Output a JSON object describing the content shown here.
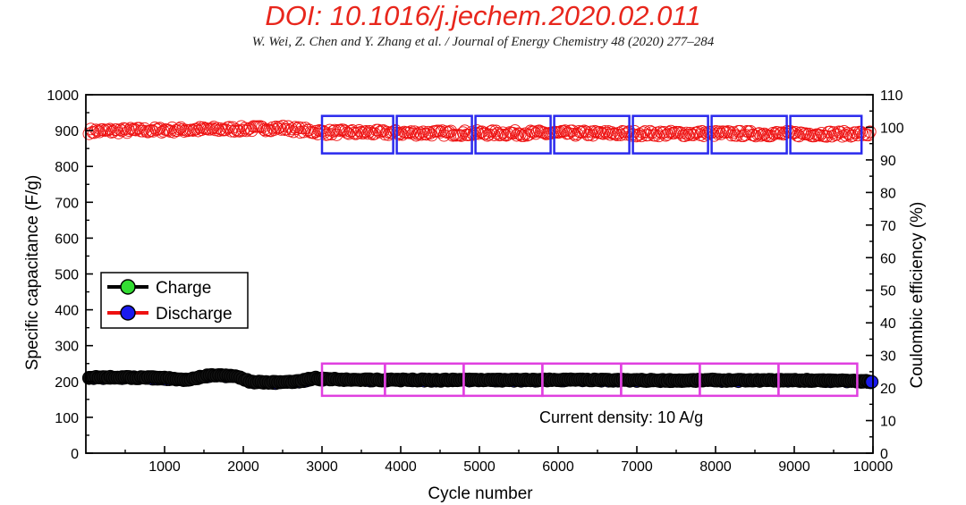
{
  "header": {
    "doi": "DOI: 10.1016/j.jechem.2020.02.011",
    "citation": "W. Wei, Z. Chen and Y. Zhang et al. / Journal of Energy Chemistry 48 (2020) 277–284"
  },
  "chart_data": {
    "type": "scatter",
    "title": "",
    "xlabel": "Cycle number",
    "ylabel": "Specific capacitance (F/g)",
    "y2label": "Coulombic efficiency (%)",
    "xlim": [
      0,
      10000
    ],
    "ylim": [
      0,
      1000
    ],
    "y2lim": [
      0,
      110
    ],
    "x_ticks": [
      1000,
      2000,
      3000,
      4000,
      5000,
      6000,
      7000,
      8000,
      9000,
      10000
    ],
    "y_ticks": [
      0,
      100,
      200,
      300,
      400,
      500,
      600,
      700,
      800,
      900,
      1000
    ],
    "y2_ticks": [
      0,
      10,
      20,
      30,
      40,
      50,
      60,
      70,
      80,
      90,
      100,
      110
    ],
    "grid": false,
    "legend": {
      "position": "center-left",
      "entries": [
        "Charge",
        "Discharge"
      ]
    },
    "colors": {
      "charge_line": "#000000",
      "charge_marker": "#33dd33",
      "discharge_line": "#ee1111",
      "discharge_marker": "#1a1aee",
      "efficiency": "#ee1111",
      "efficiency_box": "#2a2aee",
      "capacitance_box": "#e040e0"
    },
    "series": [
      {
        "name": "Charge",
        "axis": "left",
        "x": [
          0,
          500,
          1000,
          1300,
          1500,
          1700,
          1900,
          2100,
          2300,
          2500,
          2700,
          2900,
          3000,
          3500,
          4000,
          4500,
          5000,
          5500,
          6000,
          6500,
          7000,
          7500,
          8000,
          8500,
          9000,
          9500,
          10000
        ],
        "values": [
          212,
          212,
          210,
          205,
          215,
          218,
          215,
          200,
          198,
          198,
          200,
          210,
          207,
          205,
          205,
          204,
          205,
          204,
          205,
          204,
          204,
          203,
          204,
          203,
          204,
          203,
          200
        ]
      },
      {
        "name": "Discharge",
        "axis": "left",
        "x": [
          0,
          500,
          1000,
          1300,
          1500,
          1700,
          1900,
          2100,
          2300,
          2500,
          2700,
          2900,
          3000,
          3500,
          4000,
          4500,
          5000,
          5500,
          6000,
          6500,
          7000,
          7500,
          8000,
          8500,
          9000,
          9500,
          10000
        ],
        "values": [
          210,
          211,
          208,
          204,
          214,
          217,
          214,
          199,
          197,
          197,
          199,
          209,
          206,
          204,
          204,
          203,
          204,
          203,
          204,
          203,
          203,
          202,
          203,
          202,
          203,
          202,
          199
        ]
      },
      {
        "name": "",
        "axis": "right",
        "x": [
          0,
          1000,
          2000,
          2500,
          3000,
          4000,
          5000,
          6000,
          7000,
          8000,
          9000,
          10000
        ],
        "values": [
          98.8,
          99.2,
          99.5,
          99.8,
          98.5,
          98.3,
          98.2,
          98.2,
          98.1,
          98.1,
          98.0,
          98.0
        ]
      }
    ],
    "highlight_boxes_efficiency": [
      [
        3000,
        3950
      ],
      [
        3950,
        4950
      ],
      [
        4950,
        5950
      ],
      [
        5950,
        6950
      ],
      [
        6950,
        7950
      ],
      [
        7950,
        8950
      ],
      [
        8950,
        9900
      ]
    ],
    "highlight_boxes_capacitance": [
      [
        3000,
        3800
      ],
      [
        3800,
        4800
      ],
      [
        4800,
        5800
      ],
      [
        5800,
        6800
      ],
      [
        6800,
        7800
      ],
      [
        7800,
        8800
      ],
      [
        8800,
        9800
      ]
    ],
    "annotation": "Current density: 10 A/g"
  }
}
